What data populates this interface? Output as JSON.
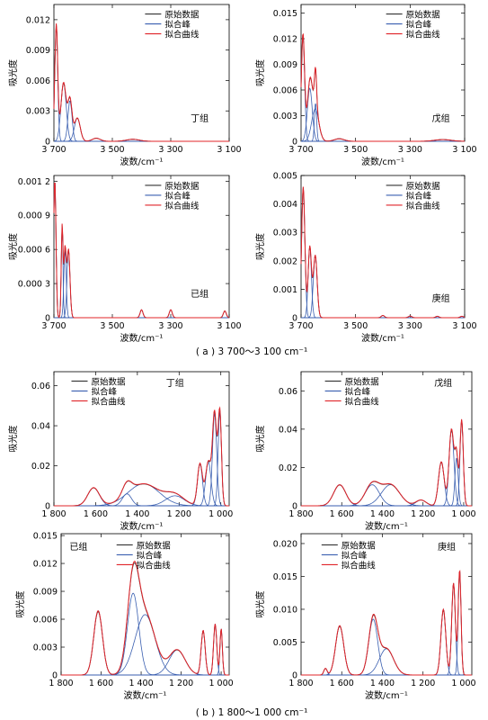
{
  "legend": {
    "raw": "原始数据",
    "peak": "拟合峰",
    "fit": "拟合曲线"
  },
  "colors": {
    "raw": "#333333",
    "peak": "#3a5fb0",
    "fit": "#e0242a"
  },
  "captions": {
    "a": "( a ) 3 700～3 100 cm⁻¹",
    "b": "( b ) 1 800～1 000 cm⁻¹"
  },
  "chart_data": [
    {
      "id": "a-ding",
      "type": "line",
      "group_label": "丁组",
      "xlabel": "波数/cm⁻¹",
      "ylabel": "吸光度",
      "xlim": [
        3700,
        3100
      ],
      "ylim": [
        0,
        0.0135
      ],
      "xticks": [
        3700,
        3500,
        3300,
        3100
      ],
      "xtick_labels": [
        "3 700",
        "3 500",
        "3 300",
        "3 100"
      ],
      "yticks": [
        0,
        0.003,
        0.006,
        0.009,
        0.012
      ],
      "ytick_labels": [
        "0",
        "0.003",
        "0.006",
        "0.009",
        "0.012"
      ],
      "peaks": [
        {
          "center": 3692,
          "height": 0.0115,
          "width": 5
        },
        {
          "center": 3667,
          "height": 0.0058,
          "width": 9
        },
        {
          "center": 3645,
          "height": 0.004,
          "width": 7
        },
        {
          "center": 3620,
          "height": 0.0023,
          "width": 10
        },
        {
          "center": 3555,
          "height": 0.0003,
          "width": 14
        },
        {
          "center": 3430,
          "height": 0.0002,
          "width": 22
        }
      ]
    },
    {
      "id": "a-wu",
      "type": "line",
      "group_label": "戊组",
      "xlabel": "波数/cm⁻¹",
      "ylabel": "吸光度",
      "xlim": [
        3700,
        3100
      ],
      "ylim": [
        0,
        0.016
      ],
      "xticks": [
        3700,
        3500,
        3300,
        3100
      ],
      "xtick_labels": [
        "3 700",
        "3 500",
        "3 300",
        "3 100"
      ],
      "yticks": [
        0,
        0.003,
        0.006,
        0.009,
        0.012,
        0.015
      ],
      "ytick_labels": [
        "0",
        "0.003",
        "0.006",
        "0.009",
        "0.012",
        "0.015"
      ],
      "peaks": [
        {
          "center": 3693,
          "height": 0.0125,
          "width": 6
        },
        {
          "center": 3668,
          "height": 0.0062,
          "width": 9
        },
        {
          "center": 3648,
          "height": 0.0038,
          "width": 13
        },
        {
          "center": 3647,
          "height": 0.0045,
          "width": 4
        },
        {
          "center": 3560,
          "height": 0.0003,
          "width": 18
        },
        {
          "center": 3180,
          "height": 0.0002,
          "width": 30
        }
      ]
    },
    {
      "id": "a-ji",
      "type": "line",
      "group_label": "已组",
      "xlabel": "波数/cm⁻¹",
      "ylabel": "吸光度",
      "xlim": [
        3700,
        3100
      ],
      "ylim": [
        0,
        0.00125
      ],
      "xticks": [
        3700,
        3500,
        3300,
        3100
      ],
      "xtick_labels": [
        "3 700",
        "3 500",
        "3 300",
        "3 100"
      ],
      "yticks": [
        0,
        0.0003,
        0.0006,
        0.0009,
        0.0012
      ],
      "ytick_labels": [
        "0",
        "0.000 3",
        "0.000 6",
        "0.000 9",
        "0.001 2"
      ],
      "peaks": [
        {
          "center": 3697,
          "height": 0.00122,
          "width": 4
        },
        {
          "center": 3672,
          "height": 0.0008,
          "width": 3
        },
        {
          "center": 3662,
          "height": 0.0006,
          "width": 4
        },
        {
          "center": 3650,
          "height": 0.0006,
          "width": 5
        },
        {
          "center": 3400,
          "height": 7e-05,
          "width": 5
        },
        {
          "center": 3300,
          "height": 7e-05,
          "width": 5
        },
        {
          "center": 3115,
          "height": 6e-05,
          "width": 5
        }
      ]
    },
    {
      "id": "a-geng",
      "type": "line",
      "group_label": "庚组",
      "xlabel": "波数/cm⁻¹",
      "ylabel": "吸光度",
      "xlim": [
        3700,
        3100
      ],
      "ylim": [
        0,
        0.005
      ],
      "xticks": [
        3700,
        3500,
        3300,
        3100
      ],
      "xtick_labels": [
        "3 700",
        "3 500",
        "3 300",
        "3 100"
      ],
      "yticks": [
        0,
        0.001,
        0.002,
        0.003,
        0.004,
        0.005
      ],
      "ytick_labels": [
        "0",
        "0.001",
        "0.002",
        "0.003",
        "0.004",
        "0.005"
      ],
      "peaks": [
        {
          "center": 3692,
          "height": 0.0046,
          "width": 6
        },
        {
          "center": 3668,
          "height": 0.0025,
          "width": 6
        },
        {
          "center": 3648,
          "height": 0.0022,
          "width": 7
        },
        {
          "center": 3400,
          "height": 8e-05,
          "width": 6
        },
        {
          "center": 3300,
          "height": 6e-05,
          "width": 6
        },
        {
          "center": 3200,
          "height": 5e-05,
          "width": 6
        },
        {
          "center": 3110,
          "height": 5e-05,
          "width": 6
        }
      ]
    },
    {
      "id": "b-ding",
      "type": "line",
      "group_label": "丁组",
      "xlabel": "波数/cm⁻¹",
      "ylabel": "吸光度",
      "xlim": [
        1800,
        960
      ],
      "ylim": [
        0,
        0.067
      ],
      "xticks": [
        1800,
        1600,
        1400,
        1200,
        1000
      ],
      "xtick_labels": [
        "1 800",
        "1 600",
        "1 400",
        "1 200",
        "1 000"
      ],
      "yticks": [
        0,
        0.02,
        0.04,
        0.06
      ],
      "ytick_labels": [
        "0",
        "0.02",
        "0.04",
        "0.06"
      ],
      "peaks": [
        {
          "center": 1610,
          "height": 0.009,
          "width": 28
        },
        {
          "center": 1450,
          "height": 0.006,
          "width": 22
        },
        {
          "center": 1370,
          "height": 0.011,
          "width": 75
        },
        {
          "center": 1220,
          "height": 0.005,
          "width": 45
        },
        {
          "center": 1100,
          "height": 0.021,
          "width": 12
        },
        {
          "center": 1060,
          "height": 0.022,
          "width": 13
        },
        {
          "center": 1030,
          "height": 0.046,
          "width": 10
        },
        {
          "center": 1005,
          "height": 0.047,
          "width": 8
        }
      ]
    },
    {
      "id": "b-wu",
      "type": "line",
      "group_label": "戊组",
      "xlabel": "波数/cm⁻¹",
      "ylabel": "吸光度",
      "xlim": [
        1800,
        960
      ],
      "ylim": [
        0,
        0.07
      ],
      "xticks": [
        1800,
        1600,
        1400,
        1200,
        1000
      ],
      "xtick_labels": [
        "1 800",
        "1 600",
        "1 400",
        "1 200",
        "1 000"
      ],
      "yticks": [
        0,
        0.02,
        0.04,
        0.06
      ],
      "ytick_labels": [
        "0",
        "0.02",
        "0.04",
        "0.06"
      ],
      "peaks": [
        {
          "center": 1610,
          "height": 0.011,
          "width": 30
        },
        {
          "center": 1450,
          "height": 0.011,
          "width": 35
        },
        {
          "center": 1360,
          "height": 0.011,
          "width": 45
        },
        {
          "center": 1210,
          "height": 0.003,
          "width": 25
        },
        {
          "center": 1110,
          "height": 0.023,
          "width": 14
        },
        {
          "center": 1060,
          "height": 0.04,
          "width": 12
        },
        {
          "center": 1035,
          "height": 0.025,
          "width": 8
        },
        {
          "center": 1010,
          "height": 0.045,
          "width": 8
        }
      ]
    },
    {
      "id": "b-ji",
      "type": "line",
      "group_label": "已组",
      "xlabel": "波数/cm⁻¹",
      "ylabel": "吸光度",
      "xlim": [
        1800,
        960
      ],
      "ylim": [
        0,
        0.0152
      ],
      "xticks": [
        1800,
        1600,
        1400,
        1200,
        1000
      ],
      "xtick_labels": [
        "1 800",
        "1 600",
        "1 400",
        "1 200",
        "1 000"
      ],
      "yticks": [
        0,
        0.003,
        0.006,
        0.009,
        0.012,
        0.015
      ],
      "ytick_labels": [
        "0",
        "0.003",
        "0.006",
        "0.009",
        "0.012",
        "0.015"
      ],
      "peaks": [
        {
          "center": 1615,
          "height": 0.0069,
          "width": 22
        },
        {
          "center": 1440,
          "height": 0.0088,
          "width": 28
        },
        {
          "center": 1380,
          "height": 0.0065,
          "width": 50
        },
        {
          "center": 1220,
          "height": 0.0027,
          "width": 40
        },
        {
          "center": 1090,
          "height": 0.0048,
          "width": 10
        },
        {
          "center": 1030,
          "height": 0.0055,
          "width": 8
        },
        {
          "center": 1000,
          "height": 0.005,
          "width": 6
        }
      ]
    },
    {
      "id": "b-geng",
      "type": "line",
      "group_label": "庚组",
      "xlabel": "波数/cm⁻¹",
      "ylabel": "吸光度",
      "xlim": [
        1800,
        960
      ],
      "ylim": [
        0,
        0.0215
      ],
      "xticks": [
        1800,
        1600,
        1400,
        1200,
        1000
      ],
      "xtick_labels": [
        "1 800",
        "1 600",
        "1 400",
        "1 200",
        "1 000"
      ],
      "yticks": [
        0,
        0.005,
        0.01,
        0.015,
        0.02
      ],
      "ytick_labels": [
        "0",
        "0.005",
        "0.010",
        "0.015",
        "0.020"
      ],
      "peaks": [
        {
          "center": 1680,
          "height": 0.001,
          "width": 8
        },
        {
          "center": 1610,
          "height": 0.0075,
          "width": 20
        },
        {
          "center": 1445,
          "height": 0.0085,
          "width": 22
        },
        {
          "center": 1380,
          "height": 0.004,
          "width": 35
        },
        {
          "center": 1100,
          "height": 0.01,
          "width": 12
        },
        {
          "center": 1050,
          "height": 0.014,
          "width": 9
        },
        {
          "center": 1020,
          "height": 0.016,
          "width": 7
        }
      ]
    }
  ]
}
